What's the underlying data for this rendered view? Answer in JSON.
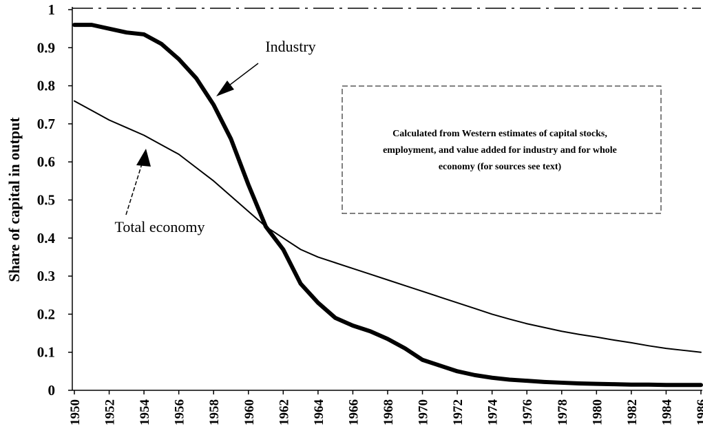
{
  "chart_data": {
    "type": "line",
    "y_label": "Share of capital in output",
    "annotations": [
      "Industry",
      "Total economy"
    ],
    "note_lines": [
      "Calculated from Western estimates of capital stocks,",
      "employment, and value added for industry and for whole",
      "economy (for sources see text)"
    ],
    "x": [
      1950,
      1951,
      1952,
      1953,
      1954,
      1955,
      1956,
      1957,
      1958,
      1959,
      1960,
      1961,
      1962,
      1963,
      1964,
      1965,
      1966,
      1967,
      1968,
      1969,
      1970,
      1971,
      1972,
      1973,
      1974,
      1975,
      1976,
      1977,
      1978,
      1979,
      1980,
      1981,
      1982,
      1983,
      1984,
      1985,
      1986
    ],
    "series": [
      {
        "name": "Industry",
        "color": "#000000",
        "width": 6,
        "values": [
          0.96,
          0.96,
          0.95,
          0.94,
          0.935,
          0.91,
          0.87,
          0.82,
          0.75,
          0.66,
          0.54,
          0.43,
          0.37,
          0.28,
          0.23,
          0.19,
          0.17,
          0.155,
          0.135,
          0.11,
          0.08,
          0.065,
          0.05,
          0.04,
          0.033,
          0.028,
          0.025,
          0.022,
          0.02,
          0.018,
          0.017,
          0.016,
          0.015,
          0.015,
          0.014,
          0.014,
          0.014
        ]
      },
      {
        "name": "Total economy",
        "color": "#000000",
        "width": 2,
        "values": [
          0.76,
          0.735,
          0.71,
          0.69,
          0.67,
          0.645,
          0.62,
          0.585,
          0.55,
          0.51,
          0.47,
          0.43,
          0.4,
          0.37,
          0.35,
          0.335,
          0.32,
          0.305,
          0.29,
          0.275,
          0.26,
          0.245,
          0.23,
          0.215,
          0.2,
          0.187,
          0.175,
          0.165,
          0.155,
          0.147,
          0.14,
          0.132,
          0.125,
          0.117,
          0.11,
          0.105,
          0.1
        ]
      }
    ],
    "xlim": [
      1950,
      1986
    ],
    "xticks": [
      1950,
      1952,
      1954,
      1956,
      1958,
      1960,
      1962,
      1964,
      1966,
      1968,
      1970,
      1972,
      1974,
      1976,
      1978,
      1980,
      1982,
      1984,
      1986
    ],
    "ylim": [
      0,
      1
    ],
    "yticks": [
      0,
      0.1,
      0.2,
      0.3,
      0.4,
      0.5,
      0.6,
      0.7,
      0.8,
      0.9,
      1
    ]
  }
}
